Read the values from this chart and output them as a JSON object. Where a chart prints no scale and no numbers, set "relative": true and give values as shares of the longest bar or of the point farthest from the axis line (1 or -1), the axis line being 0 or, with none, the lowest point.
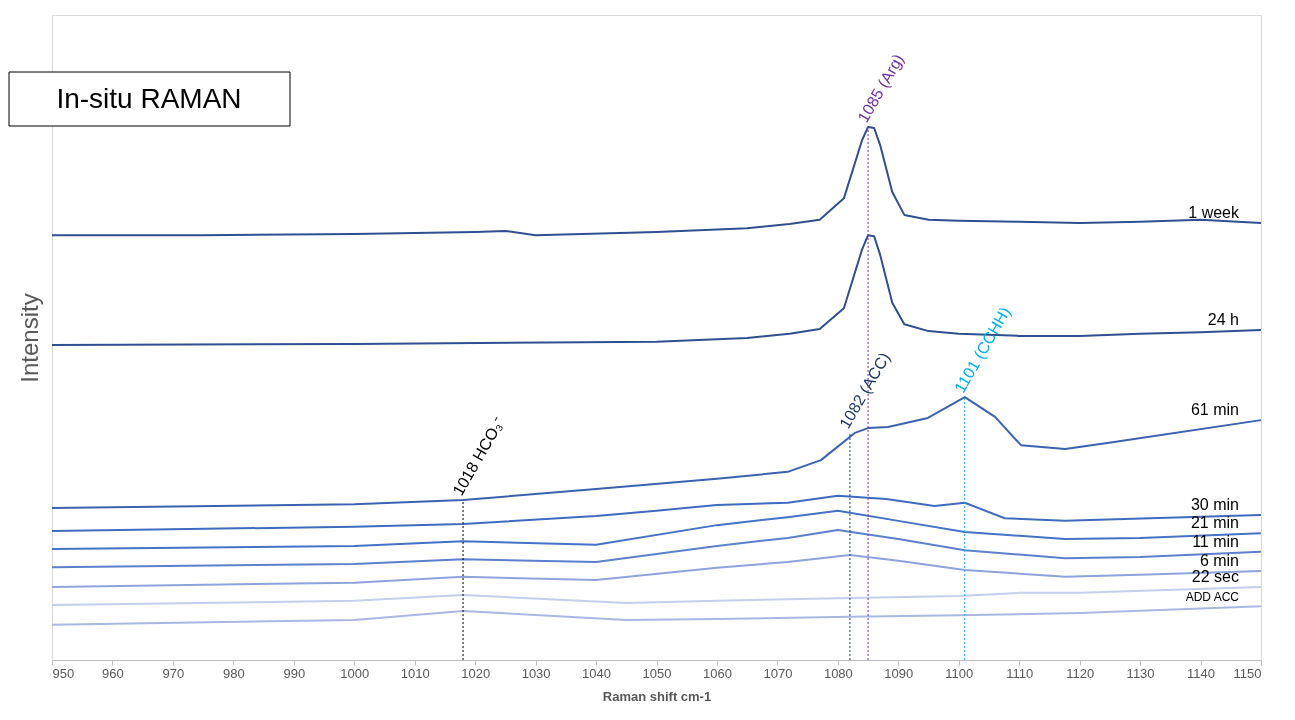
{
  "chart_data": {
    "type": "line",
    "title": "In-situ RAMAN",
    "xlabel": "Raman shift cm-1",
    "ylabel": "Intensity",
    "relative": true,
    "xlim": [
      950,
      1150
    ],
    "xticks": [
      950,
      960,
      970,
      980,
      990,
      1000,
      1010,
      1020,
      1030,
      1040,
      1050,
      1060,
      1070,
      1080,
      1090,
      1100,
      1110,
      1120,
      1130,
      1140,
      1150
    ],
    "grid": false,
    "legend": false,
    "marker": "none",
    "line_style": "solid",
    "series": [
      {
        "name": "1 week",
        "color": "#2f4f91",
        "x": [
          950,
          975,
          1000,
          1020,
          1025,
          1030,
          1050,
          1065,
          1072,
          1077,
          1081,
          1084,
          1085,
          1086,
          1087,
          1089,
          1091,
          1095,
          1100,
          1110,
          1120,
          1130,
          1140,
          1150
        ],
        "values": [
          0.797,
          0.797,
          0.799,
          0.803,
          0.805,
          0.797,
          0.803,
          0.81,
          0.818,
          0.826,
          0.866,
          0.975,
          1.0,
          0.998,
          0.966,
          0.878,
          0.835,
          0.826,
          0.824,
          0.822,
          0.82,
          0.822,
          0.826,
          0.82
        ]
      },
      {
        "name": "24 h",
        "color": "#2f4f91",
        "x": [
          950,
          1000,
          1050,
          1065,
          1072,
          1077,
          1081,
          1084,
          1085,
          1086,
          1087,
          1089,
          1091,
          1095,
          1100,
          1110,
          1120,
          1130,
          1140,
          1150
        ],
        "values": [
          0.591,
          0.593,
          0.597,
          0.604,
          0.612,
          0.621,
          0.66,
          0.77,
          0.797,
          0.795,
          0.76,
          0.67,
          0.63,
          0.617,
          0.612,
          0.608,
          0.608,
          0.612,
          0.615,
          0.619
        ]
      },
      {
        "name": "61 min",
        "color": "#3a62b0",
        "x": [
          950,
          1000,
          1018,
          1040,
          1060,
          1071.7,
          1077.2,
          1082.8,
          1085,
          1088.3,
          1094.9,
          1101,
          1106,
          1110.3,
          1117.6,
          1125.7,
          1150
        ],
        "values": [
          0.285,
          0.292,
          0.3,
          0.321,
          0.34,
          0.353,
          0.375,
          0.426,
          0.435,
          0.437,
          0.454,
          0.493,
          0.456,
          0.403,
          0.396,
          0.409,
          0.45
        ]
      },
      {
        "name": "30 min",
        "color": "#3f6bbf",
        "x": [
          950,
          1000,
          1018,
          1040,
          1050,
          1060,
          1071.7,
          1080,
          1088,
          1096,
          1101,
          1107.6,
          1117.6,
          1150
        ],
        "values": [
          0.242,
          0.25,
          0.255,
          0.27,
          0.28,
          0.291,
          0.295,
          0.308,
          0.302,
          0.289,
          0.295,
          0.266,
          0.261,
          0.272
        ]
      },
      {
        "name": "21 min",
        "color": "#4472c4",
        "x": [
          950,
          1000,
          1018,
          1040,
          1060,
          1071.7,
          1080,
          1090,
          1101,
          1117.6,
          1130,
          1150
        ],
        "values": [
          0.208,
          0.214,
          0.223,
          0.216,
          0.253,
          0.268,
          0.28,
          0.261,
          0.24,
          0.227,
          0.229,
          0.238
        ]
      },
      {
        "name": "11 min",
        "color": "#5b80cc",
        "x": [
          950,
          1000,
          1018,
          1040,
          1060,
          1071.7,
          1080,
          1090,
          1101,
          1117.6,
          1130,
          1150
        ],
        "values": [
          0.174,
          0.18,
          0.189,
          0.184,
          0.214,
          0.229,
          0.244,
          0.227,
          0.206,
          0.191,
          0.193,
          0.203
        ]
      },
      {
        "name": "6 min",
        "color": "#8ea3dc",
        "x": [
          950,
          1000,
          1018,
          1040,
          1060,
          1071.7,
          1082,
          1090,
          1101,
          1117.6,
          1130,
          1150
        ],
        "values": [
          0.137,
          0.145,
          0.156,
          0.15,
          0.173,
          0.184,
          0.197,
          0.186,
          0.169,
          0.156,
          0.16,
          0.167
        ]
      },
      {
        "name": "22 sec",
        "color": "#c5cfec",
        "x": [
          950,
          1000,
          1018,
          1045,
          1060,
          1080,
          1100,
          1110,
          1120,
          1150
        ],
        "values": [
          0.103,
          0.111,
          0.122,
          0.107,
          0.111,
          0.116,
          0.12,
          0.126,
          0.126,
          0.137
        ]
      },
      {
        "name": "ADD ACC",
        "color": "#aab7e2",
        "x": [
          950,
          1000,
          1018,
          1045,
          1060,
          1082,
          1100,
          1120,
          1150
        ],
        "values": [
          0.066,
          0.075,
          0.092,
          0.075,
          0.077,
          0.081,
          0.084,
          0.088,
          0.101
        ]
      }
    ],
    "ref_lines": [
      {
        "axis": "x",
        "value": 1018,
        "color": "#000000",
        "line_style": "dotted"
      },
      {
        "axis": "x",
        "value": 1082,
        "color": "#1f3864",
        "line_style": "dotted"
      },
      {
        "axis": "x",
        "value": 1085,
        "color": "#7030a0",
        "line_style": "dotted"
      },
      {
        "axis": "x",
        "value": 1101,
        "color": "#00b0f0",
        "line_style": "dotted"
      }
    ],
    "annotations": [
      {
        "text": "1018 HCO₃⁻",
        "x": 1018,
        "y": 0.3
      },
      {
        "text": "1082 (ACC)",
        "x": 1082,
        "y": 0.426
      },
      {
        "text": "1085 (Arg)",
        "x": 1085,
        "y": 1.0
      },
      {
        "text": "1101 (CCHH)",
        "x": 1101,
        "y": 0.493
      }
    ]
  }
}
